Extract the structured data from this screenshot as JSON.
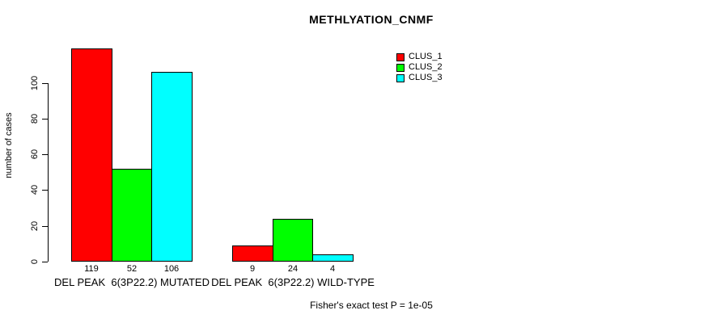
{
  "chart": {
    "title": "METHLYATION_CNMF",
    "ylabel": "number of cases",
    "subtitle": "Fisher's exact test P = 1e-05"
  },
  "chart_data": {
    "type": "bar",
    "title": "METHLYATION_CNMF",
    "xlabel": "",
    "ylabel": "number of cases",
    "categories": [
      "DEL PEAK  6(3P22.2) MUTATED",
      "DEL PEAK  6(3P22.2) WILD-TYPE"
    ],
    "series": [
      {
        "name": "CLUS_1",
        "color": "#FF0000",
        "values": [
          119,
          9
        ]
      },
      {
        "name": "CLUS_2",
        "color": "#00FF00",
        "values": [
          52,
          24
        ]
      },
      {
        "name": "CLUS_3",
        "color": "#00FFFF",
        "values": [
          106,
          4
        ]
      }
    ],
    "bar_labels": [
      [
        "119",
        "52",
        "106"
      ],
      [
        "9",
        "24",
        "4"
      ]
    ],
    "y_ticks": [
      0,
      20,
      40,
      60,
      80,
      100
    ],
    "ylim": [
      0,
      120
    ],
    "grid": false,
    "legend_position": "top-right",
    "annotation": "Fisher's exact test P = 1e-05"
  }
}
